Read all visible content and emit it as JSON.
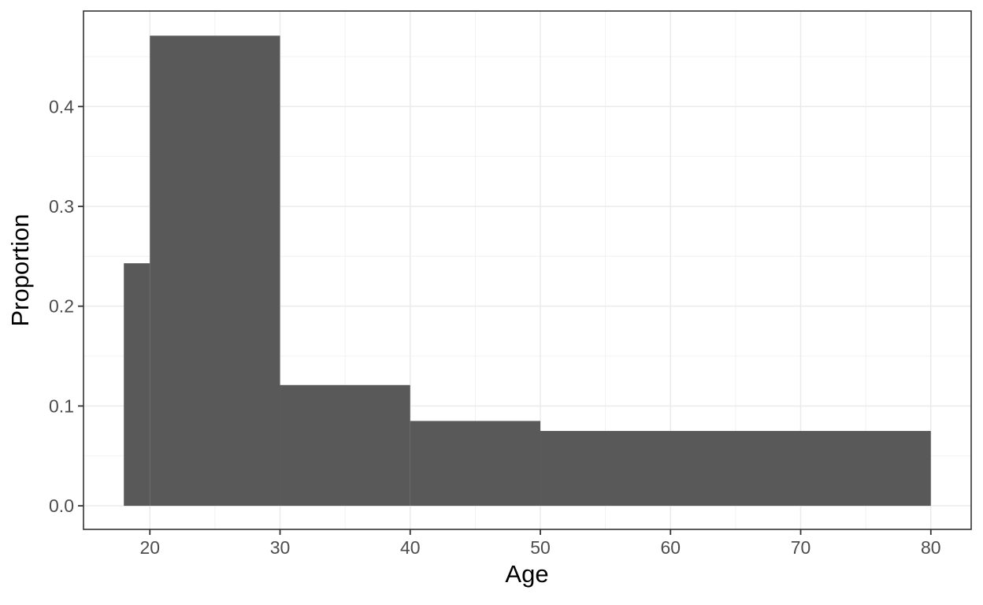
{
  "figure": {
    "background_color": "#FFFFFF"
  },
  "chart_data": {
    "type": "bar",
    "subtype": "histogram",
    "title": "",
    "xlabel": "Age",
    "ylabel": "Proportion",
    "xlim": [
      14.9,
      83.1
    ],
    "ylim": [
      -0.0236,
      0.4957
    ],
    "grid": "on",
    "legend": "none",
    "x_ticks": [
      {
        "value": 20,
        "label": "20"
      },
      {
        "value": 30,
        "label": "30"
      },
      {
        "value": 40,
        "label": "40"
      },
      {
        "value": 50,
        "label": "50"
      },
      {
        "value": 60,
        "label": "60"
      },
      {
        "value": 70,
        "label": "70"
      },
      {
        "value": 80,
        "label": "80"
      }
    ],
    "y_ticks": [
      {
        "value": 0.0,
        "label": "0.0"
      },
      {
        "value": 0.1,
        "label": "0.1"
      },
      {
        "value": 0.2,
        "label": "0.2"
      },
      {
        "value": 0.3,
        "label": "0.3"
      },
      {
        "value": 0.4,
        "label": "0.4"
      }
    ],
    "x_minor_gridlines": [
      25,
      35,
      45,
      55,
      65,
      75
    ],
    "y_minor_gridlines": [
      0.05,
      0.15,
      0.25,
      0.35,
      0.45
    ],
    "bins": [
      {
        "x0": 18,
        "x1": 20,
        "proportion": 0.243
      },
      {
        "x0": 20,
        "x1": 30,
        "proportion": 0.471
      },
      {
        "x0": 30,
        "x1": 40,
        "proportion": 0.121
      },
      {
        "x0": 40,
        "x1": 50,
        "proportion": 0.085
      },
      {
        "x0": 50,
        "x1": 80,
        "proportion": 0.075
      }
    ],
    "style": {
      "bar_fill": "#595959",
      "panel_background": "#FFFFFF",
      "panel_border_color": "#333333",
      "grid_major_color": "#EBEBEB",
      "grid_minor_color": "#EFEFEF",
      "tick_mark_color": "#333333",
      "tick_label_color": "#4D4D4D",
      "axis_title_color": "#000000"
    }
  }
}
